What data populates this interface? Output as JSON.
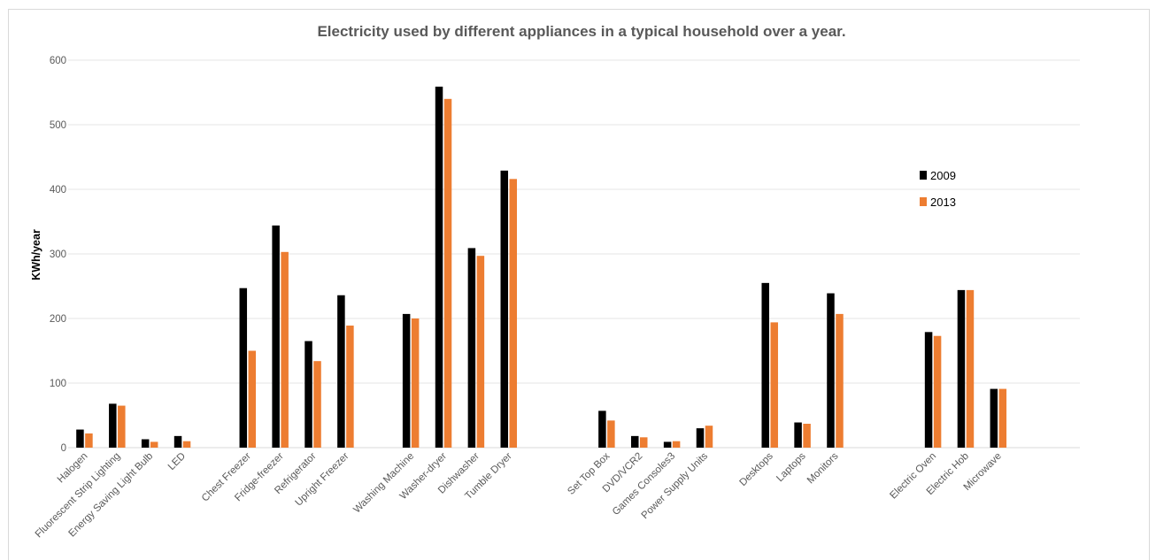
{
  "chart_data": {
    "type": "bar",
    "title": "Electricity used by different appliances in a typical household over a year.",
    "xlabel": "",
    "ylabel": "KWh/year",
    "ylim": [
      0,
      600
    ],
    "yticks": [
      0,
      100,
      200,
      300,
      400,
      500,
      600
    ],
    "grid": true,
    "legend_position": "right",
    "categories": [
      "Halogen",
      "Fluorescent Strip Lighting",
      "Energy Saving Light Bulb",
      "LED",
      "",
      "Chest Freezer",
      "Fridge-freezer",
      "Refrigerator",
      "Upright Freezer",
      "",
      "Washing Machine",
      "Washer-dryer",
      "Dishwasher",
      "Tumble Dryer",
      "",
      "",
      "Set Top Box",
      "DVD/VCR2",
      "Games Consoles3",
      "Power Supply Units",
      "",
      "Desktops",
      "Laptops",
      "Monitors",
      "",
      "",
      "Electric Oven",
      "Electric Hob",
      "Microwave",
      "",
      ""
    ],
    "series": [
      {
        "name": "2009",
        "color": "#000000",
        "values": [
          28,
          68,
          13,
          18,
          null,
          247,
          344,
          165,
          236,
          null,
          207,
          559,
          309,
          429,
          null,
          null,
          57,
          18,
          9,
          30,
          null,
          255,
          39,
          239,
          null,
          null,
          179,
          244,
          91,
          null,
          null
        ]
      },
      {
        "name": "2013",
        "color": "#ed7d31",
        "values": [
          22,
          65,
          9,
          10,
          null,
          150,
          303,
          134,
          189,
          null,
          200,
          540,
          297,
          416,
          null,
          null,
          42,
          16,
          10,
          34,
          null,
          194,
          37,
          207,
          null,
          null,
          173,
          244,
          91,
          null,
          null
        ]
      }
    ]
  }
}
